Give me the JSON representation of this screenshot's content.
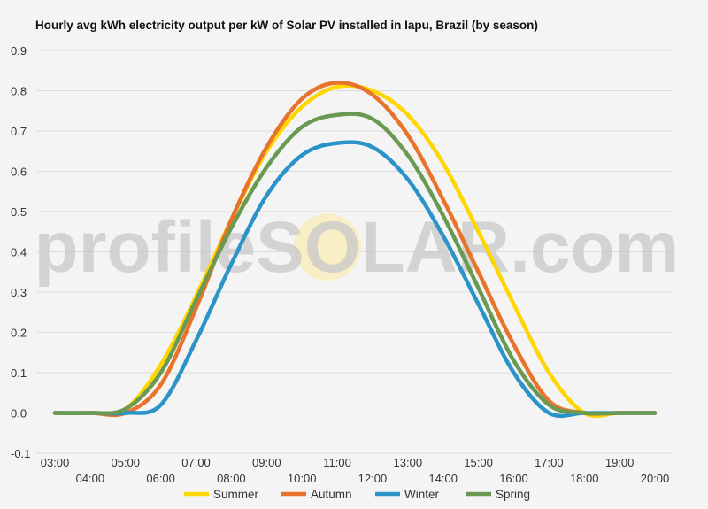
{
  "watermark": "profileSOLAR.com",
  "chart_data": {
    "type": "line",
    "title": "Hourly avg kWh electricity output per kW of Solar PV installed in Iapu, Brazil (by season)",
    "xlabel": "",
    "ylabel": "",
    "categories": [
      "03:00",
      "04:00",
      "05:00",
      "06:00",
      "07:00",
      "08:00",
      "09:00",
      "10:00",
      "11:00",
      "12:00",
      "13:00",
      "14:00",
      "15:00",
      "16:00",
      "17:00",
      "18:00",
      "19:00",
      "20:00"
    ],
    "ylim": [
      -0.1,
      0.9
    ],
    "yticks": [
      "-0.1",
      "0.0",
      "0.1",
      "0.2",
      "0.3",
      "0.4",
      "0.5",
      "0.6",
      "0.7",
      "0.8",
      "0.9"
    ],
    "grid": true,
    "legend_position": "bottom",
    "series": [
      {
        "name": "Summer",
        "color": "#ffd700",
        "values": [
          0,
          0,
          0.01,
          0.12,
          0.29,
          0.48,
          0.65,
          0.76,
          0.81,
          0.8,
          0.74,
          0.62,
          0.45,
          0.27,
          0.1,
          0.0,
          0,
          0
        ]
      },
      {
        "name": "Autumn",
        "color": "#e8732a",
        "values": [
          0,
          0,
          0.0,
          0.07,
          0.26,
          0.48,
          0.66,
          0.78,
          0.82,
          0.79,
          0.69,
          0.53,
          0.35,
          0.17,
          0.03,
          0.0,
          0,
          0
        ]
      },
      {
        "name": "Winter",
        "color": "#2b93c8",
        "values": [
          0,
          0,
          0.0,
          0.02,
          0.18,
          0.37,
          0.54,
          0.64,
          0.67,
          0.66,
          0.58,
          0.44,
          0.27,
          0.1,
          0.0,
          0.0,
          0,
          0
        ]
      },
      {
        "name": "Spring",
        "color": "#6a9a52",
        "values": [
          0,
          0,
          0.01,
          0.1,
          0.28,
          0.46,
          0.61,
          0.71,
          0.74,
          0.73,
          0.64,
          0.49,
          0.31,
          0.13,
          0.02,
          0.0,
          0,
          0
        ]
      }
    ]
  }
}
